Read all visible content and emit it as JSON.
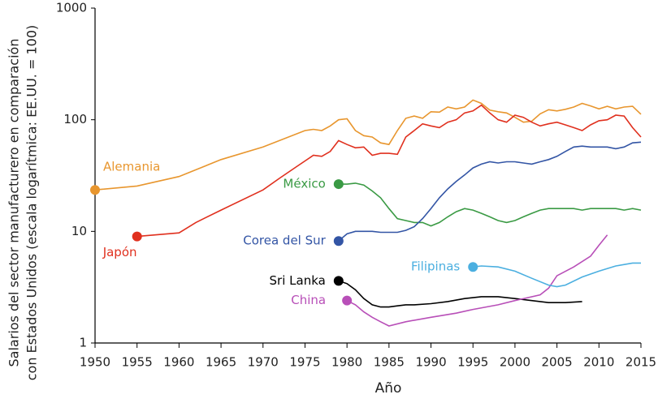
{
  "chart_data": {
    "type": "line",
    "log_scale": "y",
    "xlabel": "Año",
    "ylabel": [
      "Salarios del sector manufacturero en comparación",
      "con Estados Unidos (escala logarítmica: EE.UU. = 100)"
    ],
    "xlim": [
      1950,
      2015
    ],
    "ylim": [
      1,
      1000
    ],
    "xticks": [
      1950,
      1955,
      1960,
      1965,
      1970,
      1975,
      1980,
      1985,
      1990,
      1995,
      2000,
      2005,
      2010,
      2015
    ],
    "yticks": [
      1,
      10,
      100,
      1000
    ],
    "series": [
      {
        "name": "Alemania",
        "color": "#e8962e",
        "x": [
          1950,
          1955,
          1960,
          1965,
          1970,
          1975,
          1976,
          1977,
          1978,
          1979,
          1980,
          1981,
          1982,
          1983,
          1984,
          1985,
          1986,
          1987,
          1988,
          1989,
          1990,
          1991,
          1992,
          1993,
          1994,
          1995,
          1996,
          1997,
          1998,
          1999,
          2000,
          2001,
          2002,
          2003,
          2004,
          2005,
          2006,
          2007,
          2008,
          2009,
          2010,
          2011,
          2012,
          2013,
          2014,
          2015
        ],
        "values": [
          23.5,
          25.5,
          31,
          44,
          57,
          80,
          82,
          80,
          88,
          100,
          102,
          80,
          72,
          70,
          62,
          60,
          80,
          103,
          108,
          103,
          118,
          117,
          130,
          125,
          130,
          150,
          140,
          122,
          118,
          115,
          105,
          95,
          97,
          113,
          123,
          120,
          124,
          130,
          140,
          133,
          125,
          132,
          125,
          130,
          132,
          112
        ]
      },
      {
        "name": "Japón",
        "color": "#e0301e",
        "x": [
          1955,
          1960,
          1962,
          1965,
          1970,
          1972,
          1974,
          1976,
          1977,
          1978,
          1979,
          1980,
          1981,
          1982,
          1983,
          1984,
          1985,
          1986,
          1987,
          1988,
          1989,
          1990,
          1991,
          1992,
          1993,
          1994,
          1995,
          1996,
          1997,
          1998,
          1999,
          2000,
          2001,
          2002,
          2003,
          2004,
          2005,
          2006,
          2007,
          2008,
          2009,
          2010,
          2011,
          2012,
          2013,
          2014,
          2015
        ],
        "values": [
          9,
          9.7,
          12,
          15.5,
          23.5,
          30,
          38,
          48,
          47,
          52,
          65,
          60,
          56,
          57,
          48,
          50,
          50,
          49,
          70,
          80,
          92,
          88,
          85,
          95,
          100,
          115,
          120,
          135,
          115,
          100,
          95,
          110,
          105,
          95,
          88,
          92,
          95,
          90,
          85,
          80,
          90,
          98,
          100,
          110,
          108,
          85,
          70
        ]
      },
      {
        "name": "México",
        "color": "#3a9a44",
        "x": [
          1979,
          1980,
          1981,
          1982,
          1983,
          1984,
          1985,
          1986,
          1987,
          1988,
          1989,
          1990,
          1991,
          1992,
          1993,
          1994,
          1995,
          1996,
          1997,
          1998,
          1999,
          2000,
          2001,
          2002,
          2003,
          2004,
          2005,
          2006,
          2007,
          2008,
          2009,
          2010,
          2011,
          2012,
          2013,
          2014,
          2015
        ],
        "values": [
          26.5,
          26.5,
          27,
          26,
          23,
          20,
          16,
          13,
          12.5,
          12,
          12,
          11.2,
          12,
          13.5,
          15,
          16,
          15.5,
          14.5,
          13.5,
          12.5,
          12,
          12.5,
          13.5,
          14.5,
          15.5,
          16,
          16,
          16,
          16,
          15.5,
          16,
          16,
          16,
          16,
          15.5,
          16,
          15.5
        ]
      },
      {
        "name": "Corea del Sur",
        "color": "#3355a5",
        "x": [
          1979,
          1980,
          1981,
          1982,
          1983,
          1984,
          1985,
          1986,
          1987,
          1988,
          1989,
          1990,
          1991,
          1992,
          1993,
          1994,
          1995,
          1996,
          1997,
          1998,
          1999,
          2000,
          2001,
          2002,
          2003,
          2004,
          2005,
          2006,
          2007,
          2008,
          2009,
          2010,
          2011,
          2012,
          2013,
          2014,
          2015
        ],
        "values": [
          8.2,
          9.5,
          10,
          10,
          10,
          9.8,
          9.8,
          9.8,
          10.2,
          11,
          13,
          16,
          20,
          24,
          28,
          32,
          37,
          40,
          42,
          41,
          42,
          42,
          41,
          40,
          42,
          44,
          47,
          52,
          57,
          58,
          57,
          57,
          57,
          55,
          57,
          62,
          63
        ]
      },
      {
        "name": "Sri Lanka",
        "color": "#000000",
        "x": [
          1979,
          1980,
          1981,
          1982,
          1983,
          1984,
          1985,
          1986,
          1987,
          1988,
          1990,
          1992,
          1994,
          1996,
          1998,
          2000,
          2002,
          2004,
          2006,
          2008
        ],
        "values": [
          3.6,
          3.4,
          3.0,
          2.5,
          2.2,
          2.1,
          2.1,
          2.15,
          2.2,
          2.2,
          2.25,
          2.35,
          2.5,
          2.6,
          2.6,
          2.5,
          2.4,
          2.3,
          2.3,
          2.35
        ]
      },
      {
        "name": "China",
        "color": "#b84fb8",
        "x": [
          1980,
          1981,
          1982,
          1983,
          1984,
          1985,
          1987,
          1990,
          1993,
          1995,
          1998,
          2000,
          2003,
          2004,
          2005,
          2007,
          2009,
          2010,
          2011
        ],
        "values": [
          2.4,
          2.2,
          1.9,
          1.7,
          1.55,
          1.42,
          1.55,
          1.7,
          1.85,
          2.0,
          2.2,
          2.4,
          2.7,
          3.1,
          4.0,
          4.8,
          6.0,
          7.5,
          9.3
        ]
      },
      {
        "name": "Filipinas",
        "color": "#4bafe0",
        "x": [
          1995,
          1996,
          1998,
          2000,
          2002,
          2004,
          2005,
          2006,
          2008,
          2010,
          2012,
          2014,
          2015
        ],
        "values": [
          4.8,
          4.9,
          4.8,
          4.4,
          3.8,
          3.3,
          3.2,
          3.3,
          3.9,
          4.4,
          4.9,
          5.2,
          5.2
        ]
      }
    ]
  }
}
